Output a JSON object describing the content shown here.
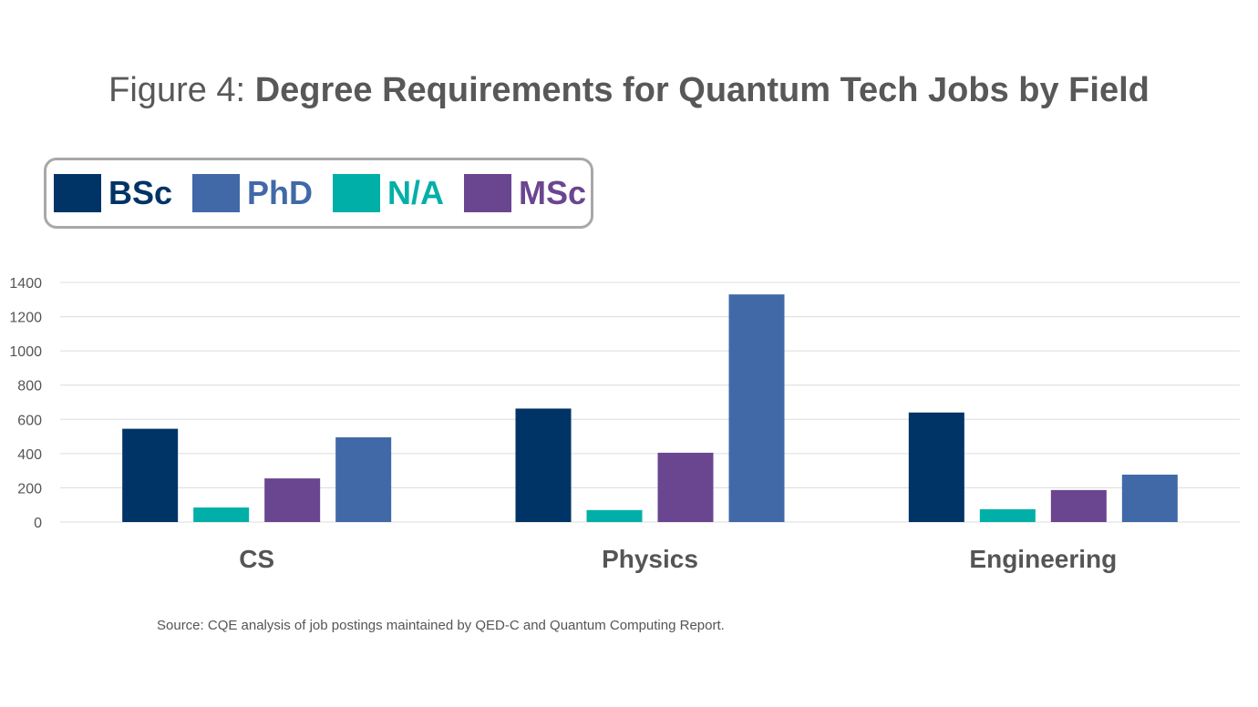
{
  "chart_data": {
    "type": "bar",
    "title_prefix": "Figure 4: ",
    "title": "Degree Requirements for Quantum Tech Jobs by Field",
    "categories": [
      "CS",
      "Physics",
      "Engineering"
    ],
    "series": [
      {
        "name": "BSc",
        "color": "#003466",
        "values": [
          545,
          663,
          640
        ]
      },
      {
        "name": "N/A",
        "color": "#00b0a8",
        "values": [
          85,
          70,
          75
        ]
      },
      {
        "name": "MSc",
        "color": "#6a4690",
        "values": [
          255,
          405,
          187
        ]
      },
      {
        "name": "PhD",
        "color": "#4169a8",
        "values": [
          495,
          1330,
          277
        ]
      }
    ],
    "legend_order": [
      "BSc",
      "PhD",
      "N/A",
      "MSc"
    ],
    "legend_placement": "top-left",
    "xlabel": "",
    "ylabel": "",
    "ylim": [
      0,
      1400
    ],
    "yticks": [
      0,
      200,
      400,
      600,
      800,
      1000,
      1200,
      1400
    ],
    "grid": true
  },
  "source": "Source: CQE analysis of job postings maintained by QED-C and Quantum Computing Report."
}
